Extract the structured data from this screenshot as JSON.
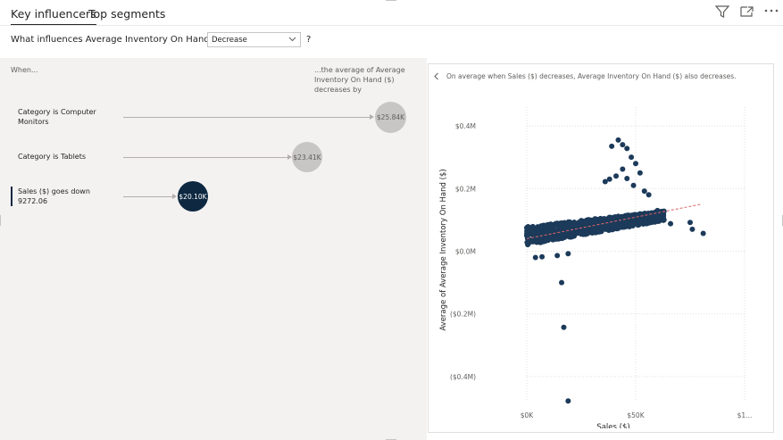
{
  "tabs": [
    {
      "label": "Key influencers",
      "active": true
    },
    {
      "label": "Top segments",
      "active": false
    }
  ],
  "header_icons": [
    "filter-icon",
    "focus-mode-icon",
    "more-options-icon"
  ],
  "question": {
    "prefix": "What influences Average Inventory On Hand ($) to",
    "selected": "Decrease",
    "help": "?"
  },
  "columns": {
    "when": "When...",
    "average": "...the average of Average Inventory On Hand ($) decreases by"
  },
  "influencers": [
    {
      "label_line1": "Category is Computer",
      "label_line2": "Monitors",
      "value": "$25.84K",
      "selected": false
    },
    {
      "label_line1": "Category is Tablets",
      "label_line2": "",
      "value": "$23.41K",
      "selected": false
    },
    {
      "label_line1": "Sales ($) goes down",
      "label_line2": "9272.06",
      "value": "$20.10K",
      "selected": true
    }
  ],
  "detail": {
    "back_icon": "chevron-left-icon",
    "explanation": "On average when Sales ($) decreases, Average Inventory On Hand ($) also decreases."
  },
  "chart_data": {
    "type": "scatter",
    "xlabel": "Sales ($)",
    "ylabel": "Average of Average Inventory On Hand ($)",
    "x_ticks": [
      "$0K",
      "$50K",
      "$1..."
    ],
    "x_tick_values": [
      0,
      50000,
      100000
    ],
    "y_ticks": [
      "$0.4M",
      "$0.2M",
      "$0.0M",
      "($0.2M)",
      "($0.4M)"
    ],
    "y_tick_values": [
      400000,
      200000,
      0,
      -200000,
      -400000
    ],
    "xlim": [
      0,
      100000
    ],
    "ylim": [
      -480000,
      460000
    ],
    "point_color": "#1c3a5a",
    "trend_color": "#e06666",
    "trend": {
      "x": [
        0,
        80000
      ],
      "y": [
        40000,
        150000
      ]
    },
    "cluster": {
      "x_range": [
        0,
        63000
      ],
      "y_range": [
        10000,
        160000
      ],
      "count": 900
    },
    "points": [
      {
        "x": 42000,
        "y": 355000
      },
      {
        "x": 44000,
        "y": 340000
      },
      {
        "x": 46000,
        "y": 328000
      },
      {
        "x": 39000,
        "y": 335000
      },
      {
        "x": 48000,
        "y": 300000
      },
      {
        "x": 50000,
        "y": 280000
      },
      {
        "x": 52000,
        "y": 250000
      },
      {
        "x": 44000,
        "y": 262000
      },
      {
        "x": 41000,
        "y": 240000
      },
      {
        "x": 38000,
        "y": 230000
      },
      {
        "x": 36000,
        "y": 222000
      },
      {
        "x": 46000,
        "y": 232000
      },
      {
        "x": 49000,
        "y": 210000
      },
      {
        "x": 54000,
        "y": 192000
      },
      {
        "x": 56000,
        "y": 180000
      },
      {
        "x": 60000,
        "y": 130000
      },
      {
        "x": 63000,
        "y": 100000
      },
      {
        "x": 66000,
        "y": 88000
      },
      {
        "x": 75000,
        "y": 92000
      },
      {
        "x": 76000,
        "y": 70000
      },
      {
        "x": 81000,
        "y": 57000
      },
      {
        "x": 4000,
        "y": -20000
      },
      {
        "x": 7000,
        "y": -18000
      },
      {
        "x": 14000,
        "y": -14000
      },
      {
        "x": 19000,
        "y": -8000
      },
      {
        "x": 16000,
        "y": -100000
      },
      {
        "x": 17000,
        "y": -243000
      },
      {
        "x": 19000,
        "y": -478000
      }
    ]
  }
}
